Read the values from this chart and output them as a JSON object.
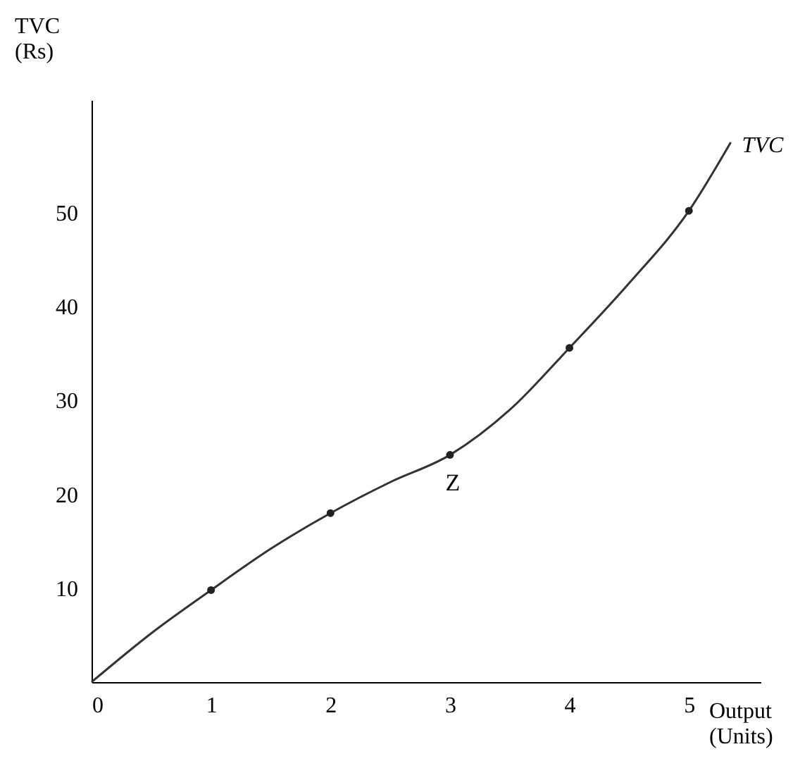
{
  "chart_data": {
    "type": "line",
    "xlabel": "Output\n(Units)",
    "ylabel": "TVC\n(Rs)",
    "xlim": [
      0,
      5.6
    ],
    "ylim": [
      0,
      62
    ],
    "xticks": [
      0,
      1,
      2,
      3,
      4,
      5
    ],
    "yticks": [
      10,
      20,
      30,
      40,
      50
    ],
    "grid": false,
    "series": [
      {
        "name": "TVC",
        "color": "#333333",
        "marker": "none",
        "x": [
          0,
          0.5,
          1,
          1.5,
          2,
          2.5,
          3,
          3.5,
          4,
          4.5,
          5,
          5.35
        ],
        "values": [
          0,
          5.2,
          9.8,
          14.2,
          18,
          21.3,
          24.2,
          29,
          35.6,
          42.5,
          50.2,
          57.5
        ]
      },
      {
        "type": "scatter",
        "color": "#222222",
        "marker": "circle",
        "x": [
          1,
          2,
          3,
          4,
          5
        ],
        "values": [
          9.8,
          18,
          24.2,
          35.6,
          50.2
        ]
      }
    ],
    "annotations": [
      {
        "text": "Z",
        "x": 3,
        "y": 24.2
      }
    ]
  }
}
